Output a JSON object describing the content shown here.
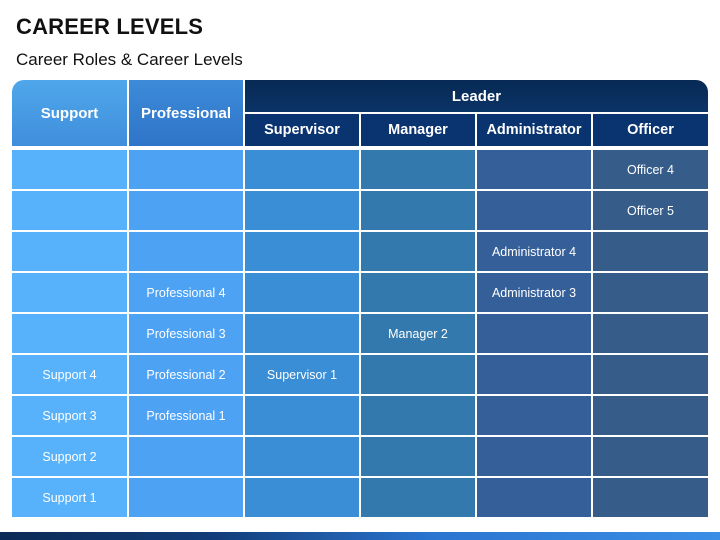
{
  "title": "CAREER LEVELS",
  "subtitle": "Career Roles & Career Levels",
  "headers": {
    "support": "Support",
    "professional": "Professional",
    "leader": "Leader",
    "leader_columns": [
      "Supervisor",
      "Manager",
      "Administrator",
      "Officer"
    ]
  },
  "grid": [
    [
      "",
      "",
      "",
      "",
      "",
      "Officer 4"
    ],
    [
      "",
      "",
      "",
      "",
      "",
      "Officer 5"
    ],
    [
      "",
      "",
      "",
      "",
      "Administrator 4",
      ""
    ],
    [
      "",
      "Professional 4",
      "",
      "",
      "Administrator 3",
      ""
    ],
    [
      "",
      "Professional 3",
      "",
      "Manager 2",
      "",
      ""
    ],
    [
      "Support 4",
      "Professional 2",
      "Supervisor 1",
      "",
      "",
      ""
    ],
    [
      "Support 3",
      "Professional 1",
      "",
      "",
      "",
      ""
    ],
    [
      "Support 2",
      "",
      "",
      "",
      "",
      ""
    ],
    [
      "Support 1",
      "",
      "",
      "",
      "",
      ""
    ]
  ],
  "colors": {
    "support": "#58b2fb",
    "professional": "#4ea2f4",
    "supervisor": "#3a8ed6",
    "manager": "#3479ad",
    "administrator": "#355f99",
    "officer": "#365d8a",
    "leader_header": "#082a55"
  }
}
